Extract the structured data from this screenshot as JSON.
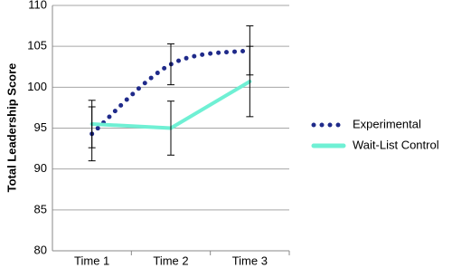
{
  "chart_data": {
    "type": "line",
    "y_label": "Total Leadership Score",
    "categories": [
      "Time 1",
      "Time 2",
      "Time 3"
    ],
    "series": [
      {
        "name": "Experimental",
        "color": "#1f2a8a",
        "style": "dotted",
        "smooth": true,
        "values": [
          94.3,
          102.8,
          104.5
        ],
        "errors": [
          3.3,
          2.5,
          3
        ]
      },
      {
        "name": "Wait-List Control",
        "color": "#6ff0d4",
        "style": "solid",
        "smooth": false,
        "values": [
          95.5,
          95,
          100.7
        ],
        "errors": [
          2.9,
          3.3,
          4.3
        ]
      }
    ],
    "ylim": [
      80,
      110
    ],
    "yticks": [
      80,
      85,
      90,
      95,
      100,
      105,
      110
    ],
    "grid": true,
    "legend": "right"
  }
}
